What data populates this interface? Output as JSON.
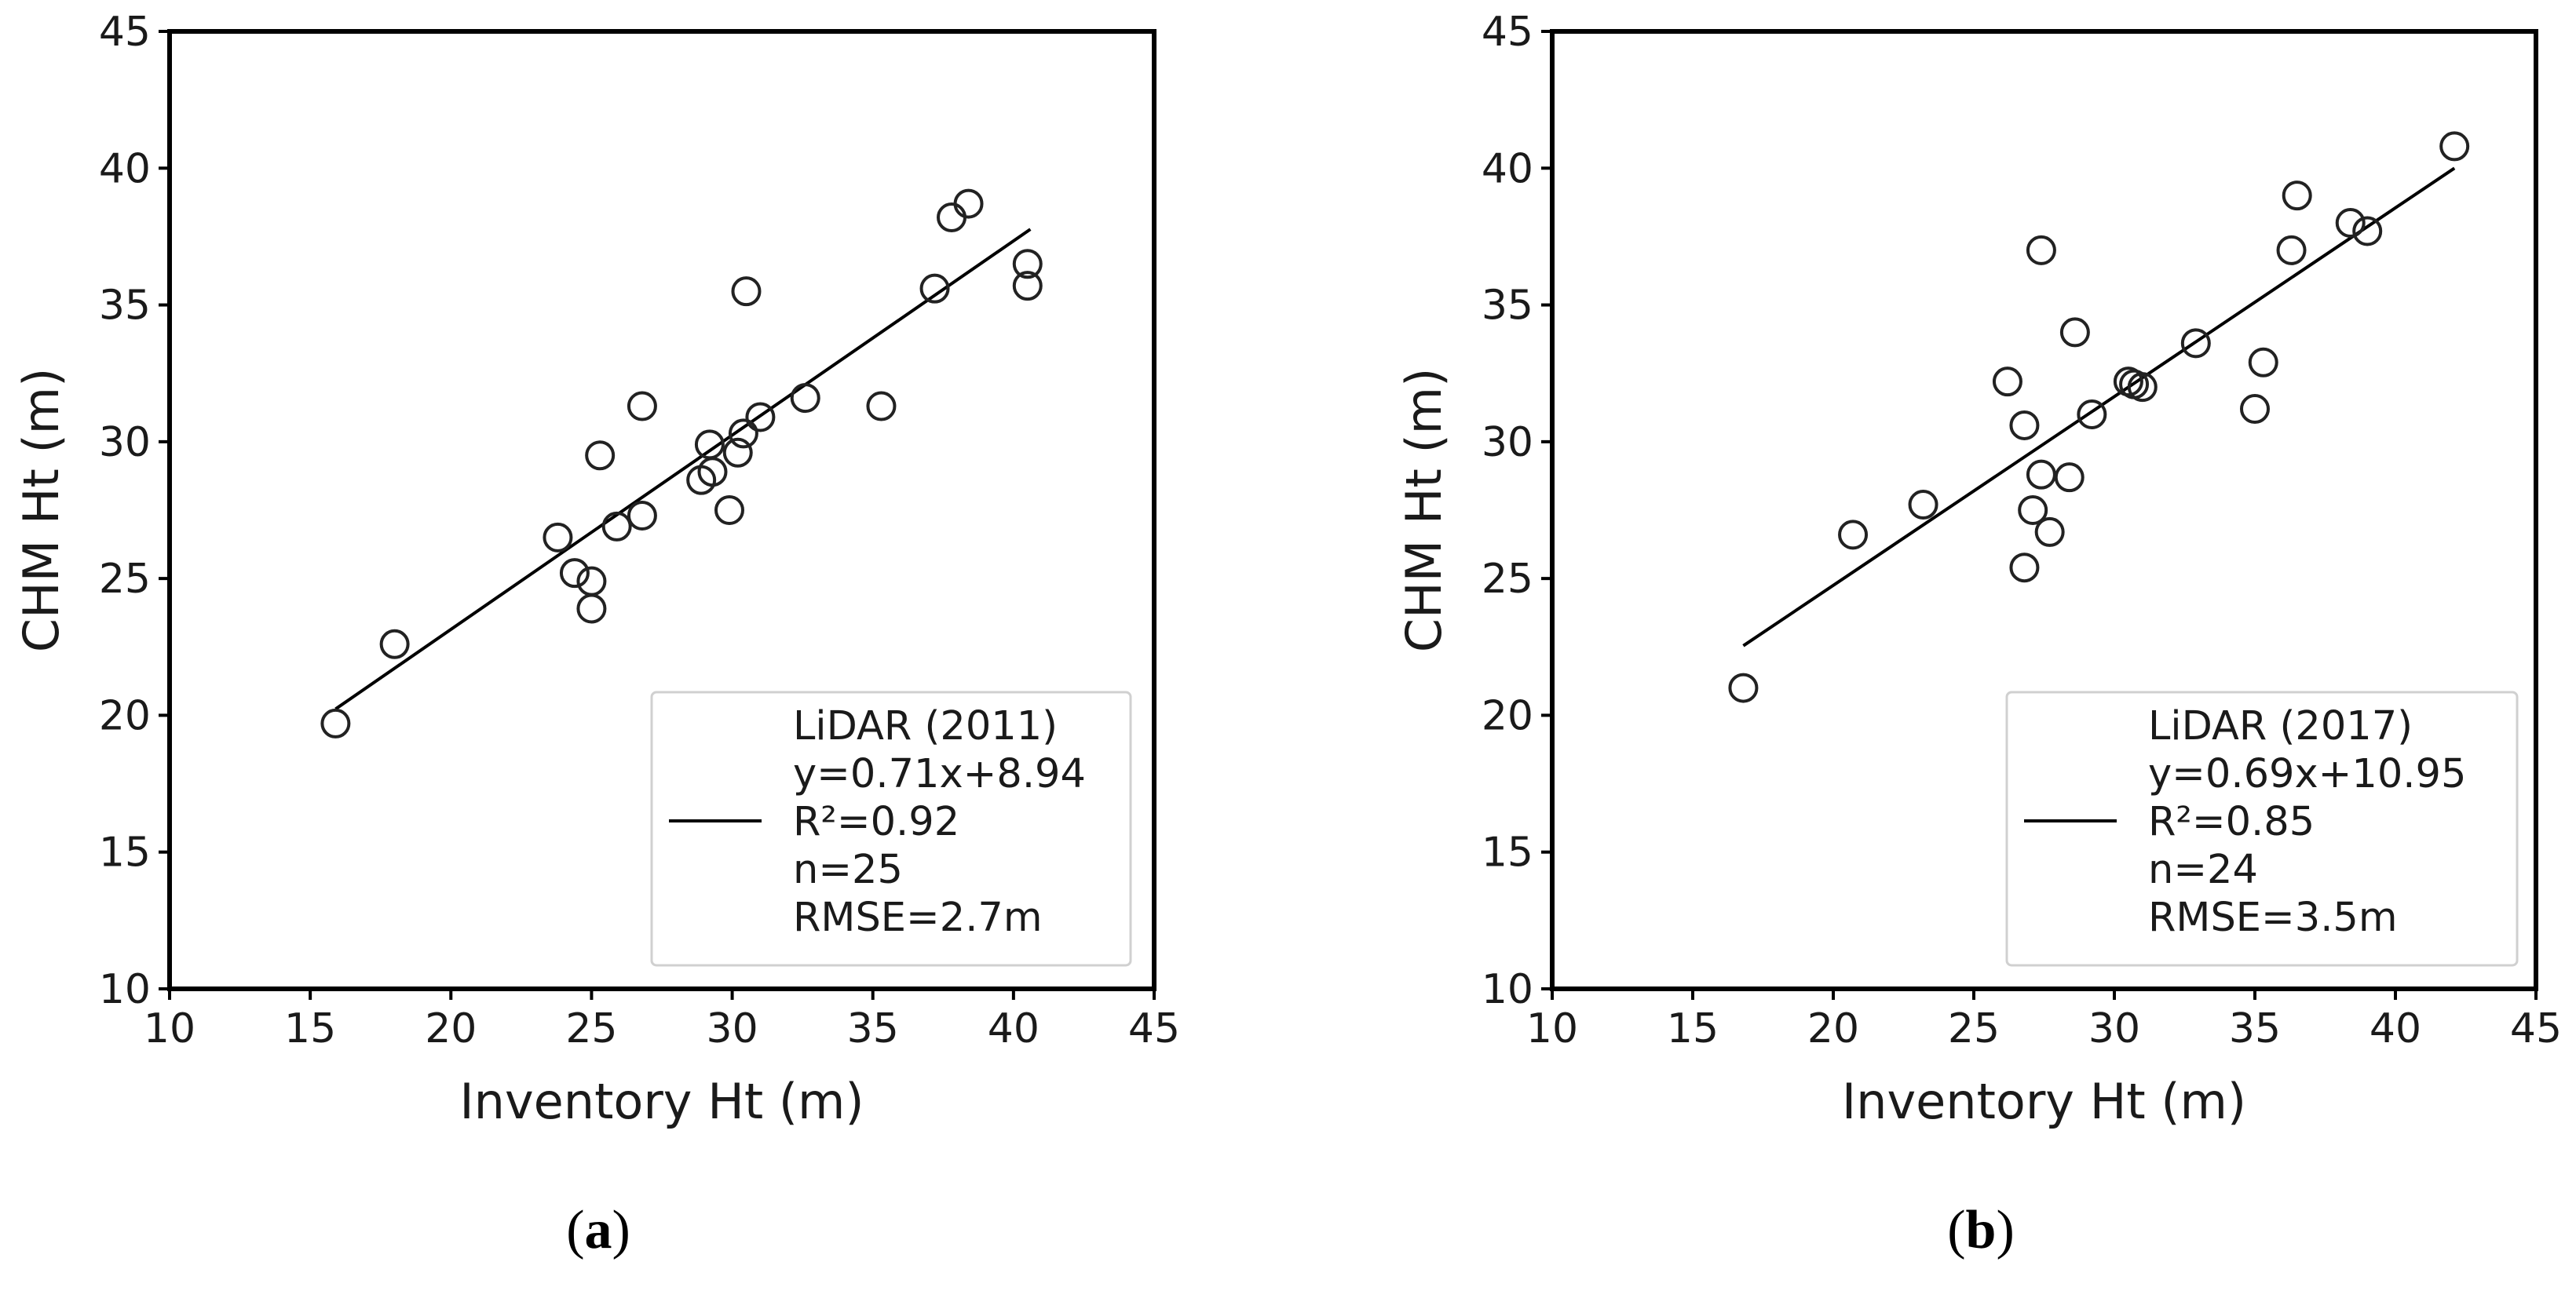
{
  "chart_data": [
    {
      "type": "scatter",
      "panel_label": "a",
      "xlabel": "Inventory Ht (m)",
      "ylabel": "CHM Ht (m)",
      "xlim": [
        10,
        45
      ],
      "ylim": [
        10,
        45
      ],
      "xticks": [
        10,
        15,
        20,
        25,
        30,
        35,
        40,
        45
      ],
      "yticks": [
        10,
        15,
        20,
        25,
        30,
        35,
        40,
        45
      ],
      "grid": false,
      "legend_position": "bottom-right",
      "legend_lines": [
        "LiDAR (2011)",
        "y=0.71x+8.94",
        "R²=0.92",
        "n=25",
        "RMSE=2.7m"
      ],
      "fit": {
        "slope": 0.71,
        "intercept": 8.94,
        "x_range": [
          15.9,
          40.6
        ]
      },
      "points": [
        [
          15.9,
          19.7
        ],
        [
          18.0,
          22.6
        ],
        [
          23.8,
          26.5
        ],
        [
          24.4,
          25.2
        ],
        [
          25.0,
          24.9
        ],
        [
          25.0,
          23.9
        ],
        [
          25.3,
          29.5
        ],
        [
          25.9,
          26.9
        ],
        [
          26.8,
          31.3
        ],
        [
          26.8,
          27.3
        ],
        [
          28.9,
          28.6
        ],
        [
          29.2,
          29.9
        ],
        [
          29.3,
          28.9
        ],
        [
          29.9,
          27.5
        ],
        [
          30.2,
          29.6
        ],
        [
          30.4,
          30.3
        ],
        [
          30.5,
          35.5
        ],
        [
          31.0,
          30.9
        ],
        [
          32.6,
          31.6
        ],
        [
          35.3,
          31.3
        ],
        [
          37.2,
          35.6
        ],
        [
          37.8,
          38.2
        ],
        [
          38.4,
          38.7
        ],
        [
          40.5,
          36.5
        ],
        [
          40.5,
          35.7
        ]
      ]
    },
    {
      "type": "scatter",
      "panel_label": "b",
      "xlabel": "Inventory Ht (m)",
      "ylabel": "CHM Ht (m)",
      "xlim": [
        10,
        45
      ],
      "ylim": [
        10,
        45
      ],
      "xticks": [
        10,
        15,
        20,
        25,
        30,
        35,
        40,
        45
      ],
      "yticks": [
        10,
        15,
        20,
        25,
        30,
        35,
        40,
        45
      ],
      "grid": false,
      "legend_position": "bottom-right",
      "legend_lines": [
        "LiDAR (2017)",
        "y=0.69x+10.95",
        "R²=0.85",
        "n=24",
        "RMSE=3.5m"
      ],
      "fit": {
        "slope": 0.69,
        "intercept": 10.95,
        "x_range": [
          16.8,
          42.1
        ]
      },
      "points": [
        [
          16.8,
          21.0
        ],
        [
          20.7,
          26.6
        ],
        [
          23.2,
          27.7
        ],
        [
          26.2,
          32.2
        ],
        [
          26.8,
          30.6
        ],
        [
          26.8,
          25.4
        ],
        [
          27.1,
          27.5
        ],
        [
          27.4,
          37.0
        ],
        [
          27.4,
          28.8
        ],
        [
          27.7,
          26.7
        ],
        [
          28.4,
          28.7
        ],
        [
          28.6,
          34.0
        ],
        [
          29.2,
          31.0
        ],
        [
          30.5,
          32.2
        ],
        [
          30.7,
          32.1
        ],
        [
          31.0,
          32.0
        ],
        [
          32.9,
          33.6
        ],
        [
          35.0,
          31.2
        ],
        [
          35.3,
          32.9
        ],
        [
          36.3,
          37.0
        ],
        [
          36.5,
          39.0
        ],
        [
          38.4,
          38.0
        ],
        [
          39.0,
          37.7
        ],
        [
          42.1,
          40.8
        ]
      ]
    }
  ]
}
